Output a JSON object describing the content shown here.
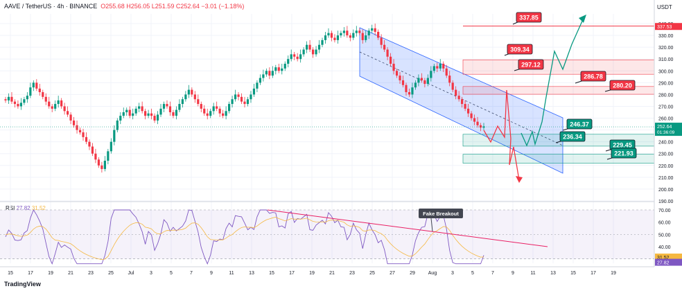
{
  "header": {
    "symbol": "AAVE / TetherUS · 4h · BINANCE",
    "ohlc": "O255.68  H256.05  L251.59  C252.64  −3.01 (−1.18%)",
    "currency": "USDT"
  },
  "rsi": {
    "label": "RSI",
    "value1": "27.82",
    "value2": "31.52"
  },
  "logo": "TradingView",
  "colors": {
    "up": "#089981",
    "down": "#f23645",
    "channel": "#2962ff",
    "rsi": "#7e57c2",
    "rsi_ma": "#f5b841",
    "trend": "#e91e63"
  },
  "chart_data": {
    "type": "candlestick",
    "y_ticks": [
      "340.00",
      "330.00",
      "320.00",
      "310.00",
      "300.00",
      "290.00",
      "280.00",
      "270.00",
      "260.00",
      "250.00",
      "240.00",
      "230.00",
      "220.00",
      "210.00",
      "200.00",
      "190.00"
    ],
    "ylim": [
      182,
      349
    ],
    "x_ticks": [
      "15",
      "17",
      "19",
      "21",
      "23",
      "25",
      "Jul",
      "3",
      "5",
      "7",
      "9",
      "11",
      "13",
      "15",
      "17",
      "19",
      "21",
      "23",
      "25",
      "27",
      "29",
      "Aug",
      "3",
      "5",
      "7",
      "9",
      "11",
      "13",
      "15",
      "17",
      "19"
    ],
    "price_label": "252.64",
    "countdown_label": "01:36:09",
    "top_axis_label": "337.53",
    "rsi_ticks": [
      "70.00",
      "60.00",
      "50.00",
      "40.00"
    ],
    "rsi_ylim": [
      24,
      74
    ],
    "rsi_values": {
      "ma": "31.52",
      "rsi": "27.82"
    },
    "annotation": "Fake Breakout",
    "levels": [
      {
        "label": "337.85",
        "value": 337.85,
        "color": "#f23645"
      },
      {
        "label": "309.34",
        "value": 309.34,
        "color": "#f23645"
      },
      {
        "label": "297.12",
        "value": 297.12,
        "color": "#f23645"
      },
      {
        "label": "286.78",
        "value": 286.78,
        "color": "#f23645"
      },
      {
        "label": "280.20",
        "value": 280.2,
        "color": "#f23645"
      },
      {
        "label": "246.37",
        "value": 246.37,
        "color": "#089981"
      },
      {
        "label": "236.34",
        "value": 236.34,
        "color": "#089981"
      },
      {
        "label": "229.45",
        "value": 229.45,
        "color": "#089981"
      },
      {
        "label": "221.93",
        "value": 221.93,
        "color": "#089981"
      }
    ],
    "price_path": [
      275,
      278,
      274,
      272,
      270,
      273,
      276,
      279,
      286,
      290,
      285,
      282,
      278,
      274,
      270,
      268,
      272,
      275,
      270,
      266,
      263,
      258,
      254,
      250,
      248,
      244,
      240,
      236,
      230,
      225,
      220,
      217,
      224,
      232,
      240,
      250,
      258,
      262,
      265,
      267,
      262,
      264,
      268,
      270,
      266,
      262,
      264,
      262,
      258,
      263,
      268,
      272,
      270,
      265,
      262,
      267,
      272,
      276,
      280,
      284,
      280,
      276,
      272,
      268,
      264,
      262,
      266,
      270,
      268,
      264,
      262,
      266,
      272,
      276,
      280,
      278,
      274,
      272,
      276,
      280,
      285,
      290,
      294,
      297,
      300,
      296,
      300,
      303,
      300,
      302,
      306,
      310,
      314,
      312,
      310,
      314,
      318,
      322,
      318,
      314,
      318,
      322,
      326,
      330,
      332,
      328,
      326,
      330,
      332,
      334,
      330,
      328,
      332,
      334,
      332,
      326,
      330,
      334,
      336,
      333,
      328,
      322,
      318,
      312,
      306,
      300,
      296,
      292,
      288,
      282,
      280,
      286,
      290,
      294,
      292,
      289,
      294,
      300,
      304,
      302,
      306,
      302,
      296,
      290,
      284,
      279,
      276,
      272,
      268,
      264,
      260,
      257,
      254,
      252,
      253
    ]
  }
}
